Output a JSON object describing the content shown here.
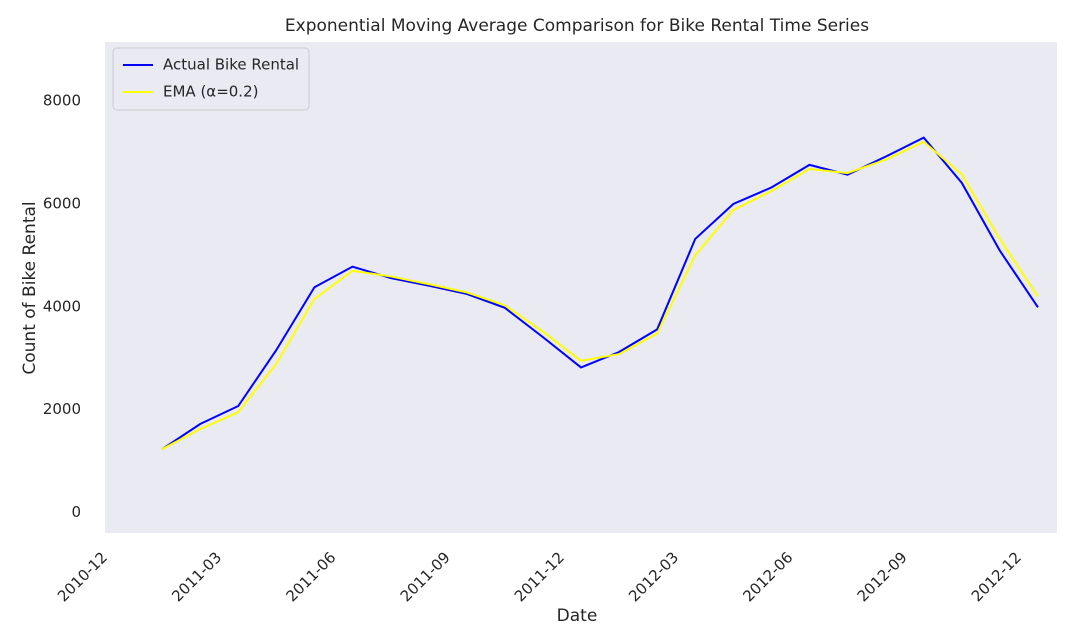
{
  "chart_data": {
    "type": "line",
    "title": "Exponential Moving Average Comparison for Bike Rental Time Series",
    "x_label": "Date",
    "y_label": "Count of Bike Rental",
    "x": [
      "2011-01",
      "2011-02",
      "2011-03",
      "2011-04",
      "2011-05",
      "2011-06",
      "2011-07",
      "2011-08",
      "2011-09",
      "2011-10",
      "2011-11",
      "2011-12",
      "2012-01",
      "2012-02",
      "2012-03",
      "2012-04",
      "2012-05",
      "2012-06",
      "2012-07",
      "2012-08",
      "2012-09",
      "2012-10",
      "2012-11",
      "2012-12"
    ],
    "series": [
      {
        "name": "Actual Bike Rental",
        "color": "#0000ff",
        "values": [
          1230,
          1720,
          2070,
          3160,
          4380,
          4780,
          4560,
          4410,
          4250,
          3980,
          3410,
          2820,
          3120,
          3560,
          5320,
          6000,
          6320,
          6760,
          6570,
          6920,
          7290,
          6410,
          5090,
          3990
        ]
      },
      {
        "name": "EMA (α=0.2)",
        "color": "#ffff00",
        "values": [
          1230,
          1620,
          1950,
          2890,
          4150,
          4700,
          4590,
          4440,
          4280,
          4030,
          3520,
          2950,
          3080,
          3480,
          5000,
          5880,
          6250,
          6680,
          6600,
          6860,
          7210,
          6580,
          5320,
          4200
        ]
      }
    ],
    "xlim": [
      "2010-12",
      "2013-01"
    ],
    "xticks": [
      "2010-12",
      "2011-03",
      "2011-06",
      "2011-09",
      "2011-12",
      "2012-03",
      "2012-06",
      "2012-09",
      "2012-12"
    ],
    "ylim": [
      -400,
      9150
    ],
    "yticks": [
      0,
      2000,
      4000,
      6000,
      8000
    ],
    "grid": false,
    "legend": "upper left"
  }
}
